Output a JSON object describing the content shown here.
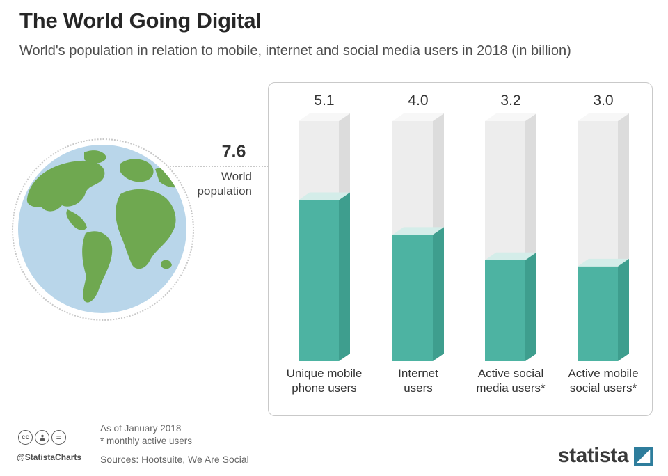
{
  "header": {
    "title": "The World Going Digital",
    "subtitle": "World's population in relation to mobile, internet and social media users in 2018 (in billion)"
  },
  "world_population": {
    "value": "7.6",
    "label": [
      "World",
      "population"
    ]
  },
  "chart_data": {
    "type": "bar",
    "title": "The World Going Digital",
    "subtitle": "World's population in relation to mobile, internet and social media users in 2018 (in billion)",
    "unit": "billion",
    "max": 7.6,
    "reference": {
      "label": "World population",
      "value": 7.6
    },
    "categories": [
      "Unique mobile phone users",
      "Internet users",
      "Active social media users*",
      "Active mobile social users*"
    ],
    "values": [
      5.1,
      4.0,
      3.2,
      3.0
    ],
    "value_labels": [
      "5.1",
      "4.0",
      "3.2",
      "3.0"
    ],
    "category_lines": [
      [
        "Unique mobile",
        "phone users"
      ],
      [
        "Internet",
        "users"
      ],
      [
        "Active social",
        "media users*"
      ],
      [
        "Active mobile",
        "social users*"
      ]
    ],
    "colors": {
      "bar": "#4db3a2",
      "bar_side": "#3e9e8e",
      "bar_top": "#d4ede9",
      "background_bar": "#ededed",
      "background_bar_side": "#dcdcdc",
      "background_bar_top": "#f7f7f7"
    },
    "legend": "none",
    "grid": false
  },
  "globe": {
    "ocean": "#b9d6ea",
    "land": "#6fa850"
  },
  "footer": {
    "as_of": "As of January 2018",
    "note": "* monthly active users",
    "sources": "Sources: Hootsuite, We Are Social",
    "credit": "@StatistaCharts",
    "brand": "statista",
    "brand_color": "#2e7d9c"
  }
}
